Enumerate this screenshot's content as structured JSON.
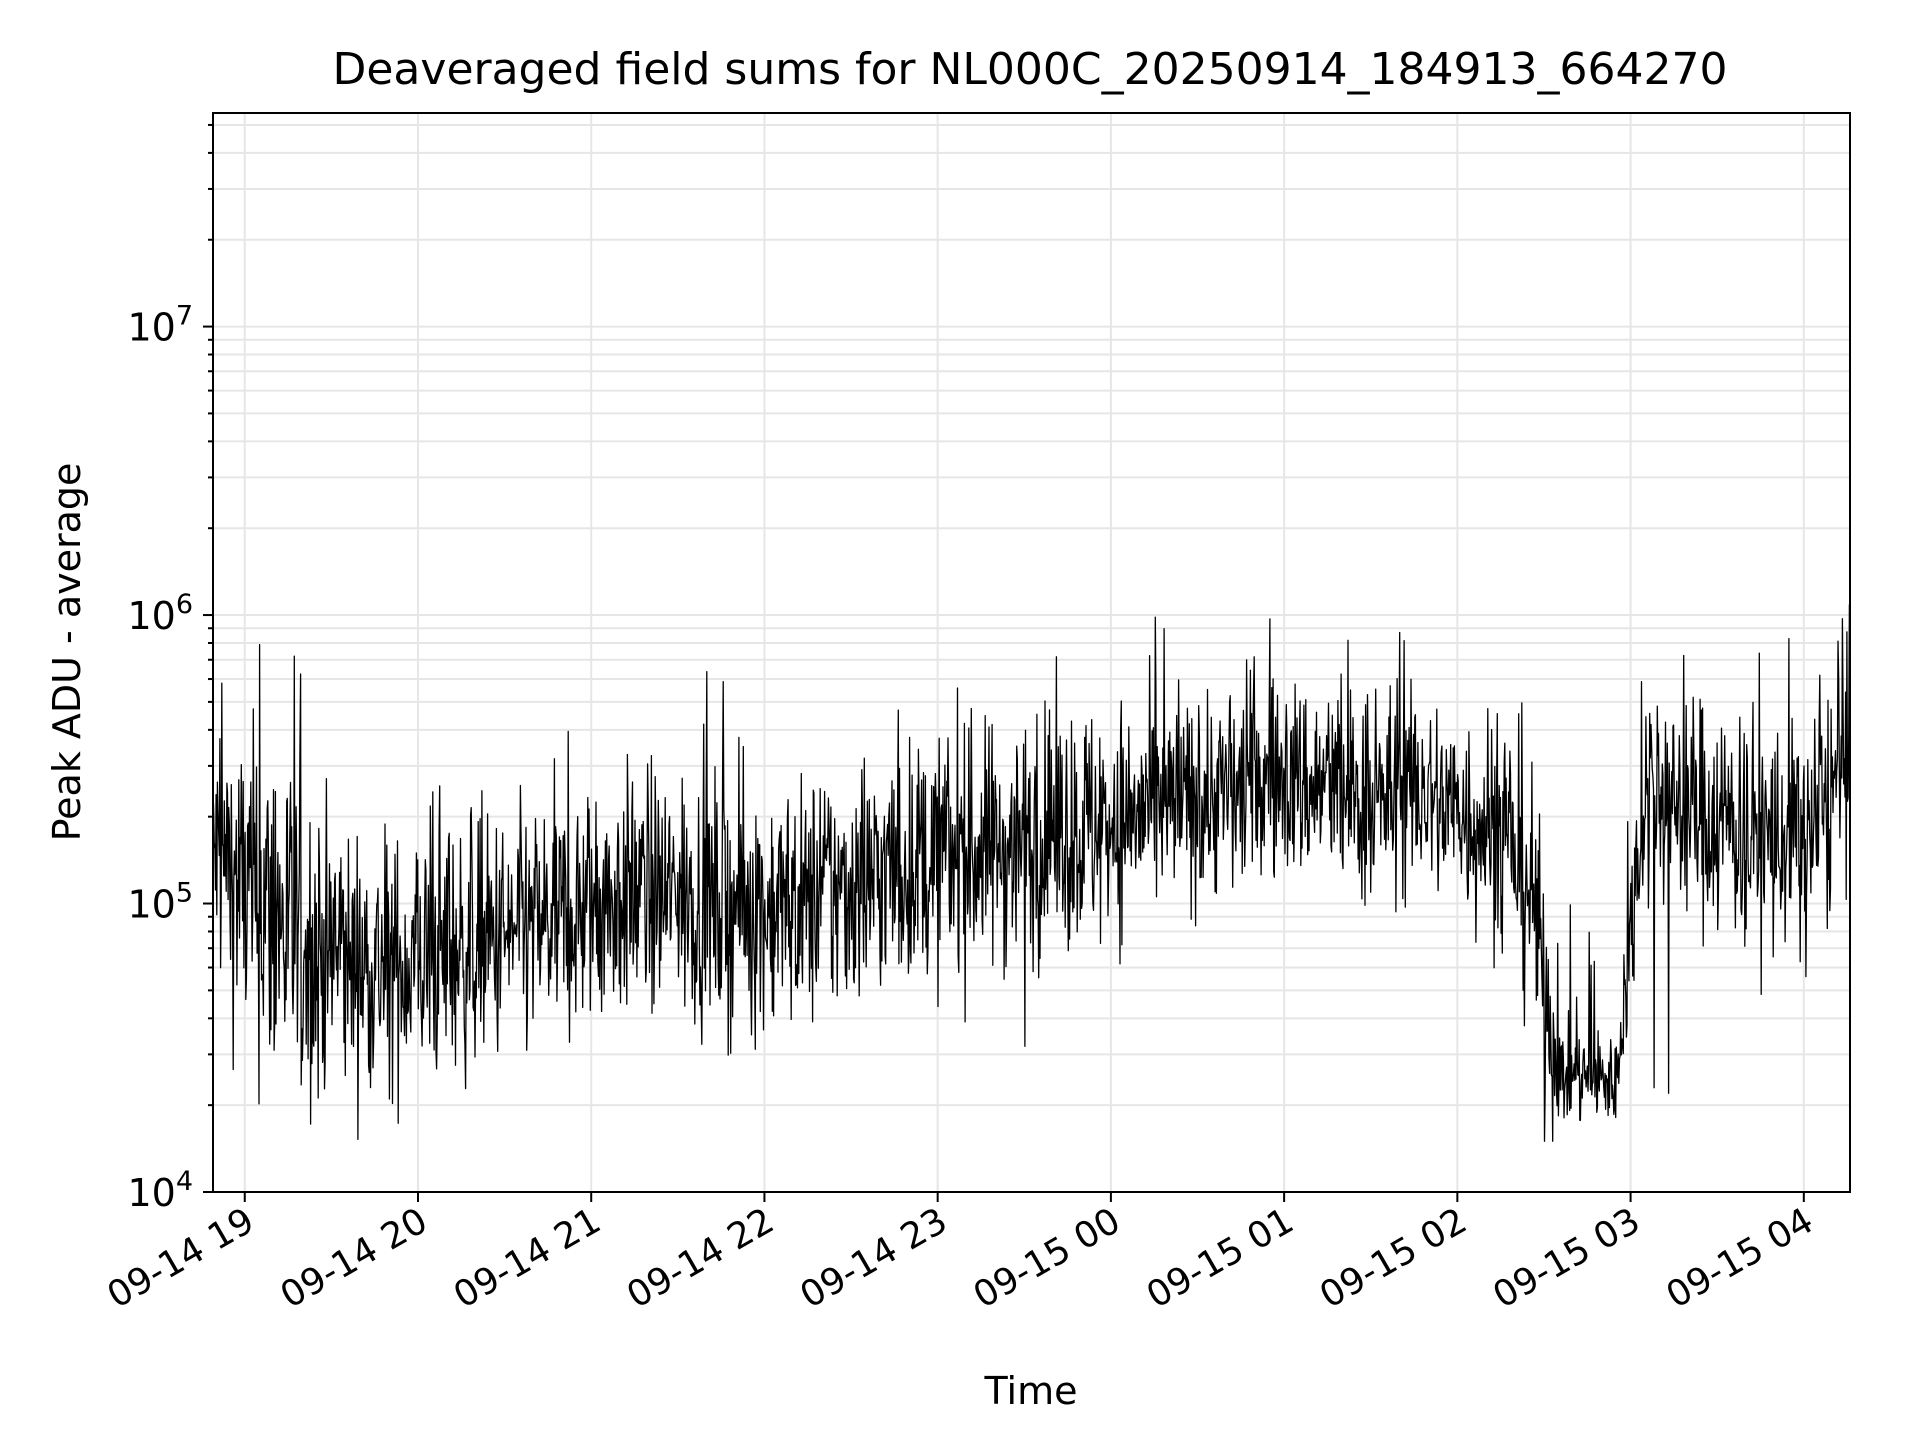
{
  "chart_data": {
    "type": "line",
    "title": "Deaveraged field sums for NL000C_20250914_184913_664270",
    "xlabel": "Time",
    "ylabel": "Peak ADU - average",
    "x_tick_labels": [
      "09-14 19",
      "09-14 20",
      "09-14 21",
      "09-14 22",
      "09-14 23",
      "09-15 00",
      "09-15 01",
      "09-15 02",
      "09-15 03",
      "09-15 04"
    ],
    "x_tick_times": [
      "2025-09-14 19:00",
      "2025-09-14 20:00",
      "2025-09-14 21:00",
      "2025-09-14 22:00",
      "2025-09-14 23:00",
      "2025-09-15 00:00",
      "2025-09-15 01:00",
      "2025-09-15 02:00",
      "2025-09-15 03:00",
      "2025-09-15 04:00"
    ],
    "xlim": [
      "2025-09-14 18:49",
      "2025-09-15 04:16"
    ],
    "y_scale": "log",
    "ylim": [
      10000,
      55000000
    ],
    "y_ticks": [
      {
        "value": 10000,
        "base": "10",
        "exp": "4"
      },
      {
        "value": 100000,
        "base": "10",
        "exp": "5"
      },
      {
        "value": 1000000,
        "base": "10",
        "exp": "6"
      },
      {
        "value": 10000000,
        "base": "10",
        "exp": "7"
      }
    ],
    "grid": true,
    "line_color": "#000000",
    "grid_color": "#e6e6e6",
    "series": [
      {
        "x": [
          "2025-09-14 18:49",
          "2025-09-14 19:00",
          "2025-09-14 19:10",
          "2025-09-14 19:20",
          "2025-09-14 19:30",
          "2025-09-14 19:40",
          "2025-09-14 19:50",
          "2025-09-14 20:00",
          "2025-09-14 20:15",
          "2025-09-14 20:30",
          "2025-09-14 20:45",
          "2025-09-14 21:00",
          "2025-09-14 21:15",
          "2025-09-14 21:30",
          "2025-09-14 21:45",
          "2025-09-14 22:00",
          "2025-09-14 22:15",
          "2025-09-14 22:30",
          "2025-09-14 22:45",
          "2025-09-14 23:00",
          "2025-09-14 23:15",
          "2025-09-14 23:30",
          "2025-09-14 23:45",
          "2025-09-15 00:00",
          "2025-09-15 00:15",
          "2025-09-15 00:30",
          "2025-09-15 00:45",
          "2025-09-15 01:00",
          "2025-09-15 01:15",
          "2025-09-15 01:30",
          "2025-09-15 01:45",
          "2025-09-15 02:00",
          "2025-09-15 02:15",
          "2025-09-15 02:25",
          "2025-09-15 02:35",
          "2025-09-15 02:45",
          "2025-09-15 02:55",
          "2025-09-15 03:05",
          "2025-09-15 03:15",
          "2025-09-15 03:30",
          "2025-09-15 03:45",
          "2025-09-15 04:00",
          "2025-09-15 04:16"
        ],
        "y": [
          150000,
          110000,
          90000,
          70000,
          65000,
          62000,
          60000,
          63000,
          68000,
          75000,
          85000,
          95000,
          110000,
          105000,
          100000,
          95000,
          100000,
          115000,
          130000,
          140000,
          150000,
          165000,
          180000,
          190000,
          210000,
          230000,
          250000,
          270000,
          250000,
          220000,
          240000,
          210000,
          180000,
          120000,
          26000,
          25000,
          24000,
          260000,
          220000,
          200000,
          170000,
          160000,
          300000
        ],
        "spread": [
          0.3,
          0.4,
          0.45,
          0.4,
          0.35,
          0.3,
          0.3,
          0.3,
          0.3,
          0.3,
          0.3,
          0.3,
          0.3,
          0.3,
          0.3,
          0.3,
          0.3,
          0.3,
          0.3,
          0.3,
          0.3,
          0.3,
          0.3,
          0.3,
          0.25,
          0.25,
          0.25,
          0.25,
          0.25,
          0.25,
          0.25,
          0.25,
          0.3,
          0.35,
          0.12,
          0.12,
          0.12,
          0.25,
          0.25,
          0.3,
          0.3,
          0.3,
          0.3
        ],
        "spikes": [
          {
            "x": "2025-09-14 19:05",
            "y": 790000
          },
          {
            "x": "2025-09-14 19:17",
            "y": 720000
          },
          {
            "x": "2025-09-14 19:50",
            "y": 21000
          },
          {
            "x": "2025-09-14 23:30",
            "y": 32000
          },
          {
            "x": "2025-09-15 00:55",
            "y": 970000
          },
          {
            "x": "2025-09-15 01:40",
            "y": 870000
          },
          {
            "x": "2025-09-15 02:30",
            "y": 15000
          },
          {
            "x": "2025-09-15 02:33",
            "y": 15000
          },
          {
            "x": "2025-09-15 03:08",
            "y": 23000
          },
          {
            "x": "2025-09-15 03:13",
            "y": 22000
          },
          {
            "x": "2025-09-15 04:16",
            "y": 1000000
          }
        ]
      }
    ]
  }
}
